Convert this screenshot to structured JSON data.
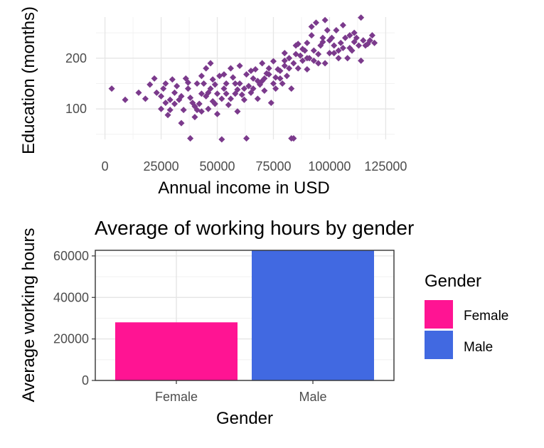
{
  "chart_data": [
    {
      "type": "scatter",
      "title": "",
      "xlabel": "Annual income in USD",
      "ylabel": "Education (months)",
      "xlim": [
        0,
        125000
      ],
      "ylim": [
        40,
        280
      ],
      "x_ticks": [
        "0",
        "25000",
        "50000",
        "75000",
        "100000",
        "125000"
      ],
      "y_ticks": [
        "100",
        "200"
      ],
      "grid": true,
      "point_color": "#7B3A8C",
      "points": [
        [
          3000,
          140
        ],
        [
          9000,
          118
        ],
        [
          15000,
          132
        ],
        [
          18000,
          120
        ],
        [
          20000,
          148
        ],
        [
          22000,
          160
        ],
        [
          23000,
          132
        ],
        [
          25000,
          125
        ],
        [
          25000,
          100
        ],
        [
          27000,
          112
        ],
        [
          28000,
          88
        ],
        [
          29000,
          98
        ],
        [
          30000,
          158
        ],
        [
          31000,
          110
        ],
        [
          33000,
          118
        ],
        [
          34000,
          72
        ],
        [
          35000,
          98
        ],
        [
          36000,
          160
        ],
        [
          37000,
          140
        ],
        [
          38000,
          122
        ],
        [
          38000,
          42
        ],
        [
          40000,
          84
        ],
        [
          40000,
          105
        ],
        [
          41000,
          150
        ],
        [
          42000,
          110
        ],
        [
          43000,
          130
        ],
        [
          43000,
          95
        ],
        [
          44000,
          150
        ],
        [
          45000,
          125
        ],
        [
          45000,
          180
        ],
        [
          46000,
          100
        ],
        [
          47000,
          140
        ],
        [
          47000,
          190
        ],
        [
          48000,
          115
        ],
        [
          49000,
          148
        ],
        [
          50000,
          90
        ],
        [
          50000,
          130
        ],
        [
          51000,
          165
        ],
        [
          52000,
          40
        ],
        [
          52000,
          120
        ],
        [
          53000,
          140
        ],
        [
          54000,
          150
        ],
        [
          55000,
          108
        ],
        [
          56000,
          180
        ],
        [
          57000,
          162
        ],
        [
          58000,
          130
        ],
        [
          59000,
          95
        ],
        [
          60000,
          150
        ],
        [
          60000,
          185
        ],
        [
          61000,
          128
        ],
        [
          62000,
          118
        ],
        [
          63000,
          42
        ],
        [
          63000,
          168
        ],
        [
          64000,
          145
        ],
        [
          65000,
          132
        ],
        [
          66000,
          160
        ],
        [
          67000,
          178
        ],
        [
          68000,
          120
        ],
        [
          69000,
          148
        ],
        [
          70000,
          190
        ],
        [
          70000,
          155
        ],
        [
          71000,
          136
        ],
        [
          72000,
          170
        ],
        [
          73000,
          168
        ],
        [
          74000,
          112
        ],
        [
          75000,
          194
        ],
        [
          75000,
          150
        ],
        [
          76000,
          140
        ],
        [
          77000,
          178
        ],
        [
          78000,
          160
        ],
        [
          79000,
          150
        ],
        [
          80000,
          210
        ],
        [
          80000,
          185
        ],
        [
          81000,
          165
        ],
        [
          82000,
          200
        ],
        [
          83000,
          42
        ],
        [
          83000,
          140
        ],
        [
          84000,
          190
        ],
        [
          84000,
          42
        ],
        [
          85000,
          225
        ],
        [
          86000,
          180
        ],
        [
          87000,
          205
        ],
        [
          88000,
          195
        ],
        [
          89000,
          215
        ],
        [
          90000,
          230
        ],
        [
          90000,
          178
        ],
        [
          91000,
          200
        ],
        [
          92000,
          245
        ],
        [
          93000,
          215
        ],
        [
          94000,
          270
        ],
        [
          95000,
          208
        ],
        [
          96000,
          225
        ],
        [
          97000,
          240
        ],
        [
          98000,
          275
        ],
        [
          98000,
          190
        ],
        [
          100000,
          210
        ],
        [
          101000,
          240
        ],
        [
          102000,
          225
        ],
        [
          103000,
          255
        ],
        [
          104000,
          200
        ],
        [
          105000,
          230
        ],
        [
          106000,
          265
        ],
        [
          107000,
          240
        ],
        [
          108000,
          200
        ],
        [
          109000,
          220
        ],
        [
          110000,
          215
        ],
        [
          111000,
          250
        ],
        [
          112000,
          240
        ],
        [
          113000,
          225
        ],
        [
          114000,
          280
        ],
        [
          114000,
          195
        ],
        [
          115000,
          235
        ],
        [
          116000,
          225
        ],
        [
          118000,
          235
        ],
        [
          119000,
          245
        ],
        [
          120000,
          230
        ],
        [
          97000,
          232
        ],
        [
          93000,
          195
        ],
        [
          88000,
          218
        ],
        [
          85000,
          208
        ],
        [
          78000,
          175
        ],
        [
          73000,
          180
        ],
        [
          66000,
          140
        ],
        [
          58000,
          150
        ],
        [
          53000,
          168
        ],
        [
          46000,
          132
        ],
        [
          39000,
          112
        ],
        [
          32000,
          145
        ],
        [
          27000,
          150
        ],
        [
          102000,
          210
        ],
        [
          106000,
          220
        ],
        [
          99000,
          255
        ],
        [
          109000,
          245
        ],
        [
          95000,
          190
        ],
        [
          82000,
          180
        ],
        [
          76000,
          162
        ],
        [
          68000,
          155
        ],
        [
          62000,
          140
        ],
        [
          56000,
          120
        ],
        [
          49000,
          110
        ],
        [
          43000,
          165
        ],
        [
          37000,
          152
        ],
        [
          31000,
          132
        ],
        [
          26000,
          140
        ],
        [
          90000,
          200
        ],
        [
          104000,
          215
        ],
        [
          111000,
          232
        ],
        [
          117000,
          228
        ],
        [
          100000,
          235
        ],
        [
          92000,
          262
        ],
        [
          86000,
          228
        ],
        [
          80000,
          195
        ],
        [
          71000,
          160
        ],
        [
          65000,
          175
        ],
        [
          59000,
          138
        ],
        [
          54000,
          130
        ],
        [
          48000,
          158
        ],
        [
          41000,
          98
        ],
        [
          34000,
          125
        ],
        [
          29000,
          118
        ]
      ]
    },
    {
      "type": "bar",
      "title": "Average of working hours by gender",
      "xlabel": "Gender",
      "ylabel": "Average working hours",
      "ylim": [
        0,
        63000
      ],
      "y_ticks": [
        "0",
        "20000",
        "40000",
        "60000"
      ],
      "categories": [
        "Female",
        "Male"
      ],
      "values": [
        28000,
        63000
      ],
      "colors": [
        "#FF1493",
        "#4169E1"
      ],
      "grid": true,
      "legend": {
        "title": "Gender",
        "position": "right",
        "items": [
          {
            "label": "Female",
            "color": "#FF1493"
          },
          {
            "label": "Male",
            "color": "#4169E1"
          }
        ]
      }
    }
  ]
}
